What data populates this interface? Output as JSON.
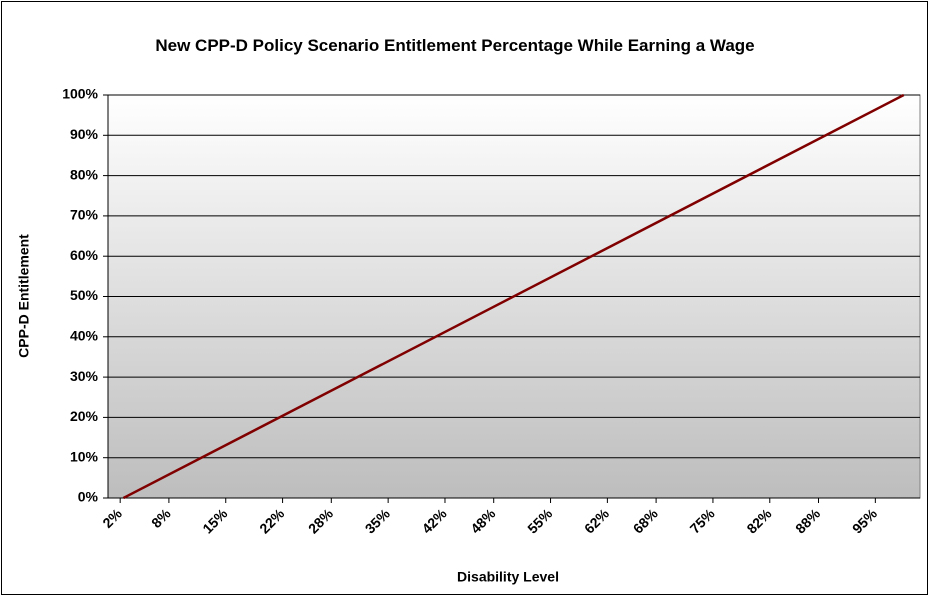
{
  "chart_data": {
    "type": "line",
    "title": "New CPP-D Policy Scenario Entitlement Percentage While Earning a Wage",
    "x_label": "Disability Level",
    "y_label": "CPP-D Entitlement",
    "x": [
      2.4,
      98.5
    ],
    "series": [
      {
        "name": "CPP-D Entitlement",
        "color": "#800000",
        "values": [
          0,
          100
        ]
      }
    ],
    "xlim": [
      0.5,
      100.5
    ],
    "xticks": [
      {
        "value": 2,
        "label": "2%"
      },
      {
        "value": 8,
        "label": "8%"
      },
      {
        "value": 15,
        "label": "15%"
      },
      {
        "value": 22,
        "label": "22%"
      },
      {
        "value": 28,
        "label": "28%"
      },
      {
        "value": 35,
        "label": "35%"
      },
      {
        "value": 42,
        "label": "42%"
      },
      {
        "value": 48,
        "label": "48%"
      },
      {
        "value": 55,
        "label": "55%"
      },
      {
        "value": 62,
        "label": "62%"
      },
      {
        "value": 68,
        "label": "68%"
      },
      {
        "value": 75,
        "label": "75%"
      },
      {
        "value": 82,
        "label": "82%"
      },
      {
        "value": 88,
        "label": "88%"
      },
      {
        "value": 95,
        "label": "95%"
      }
    ],
    "ylim": [
      0,
      100
    ],
    "yticks": [
      {
        "value": 0,
        "label": "0%"
      },
      {
        "value": 10,
        "label": "10%"
      },
      {
        "value": 20,
        "label": "20%"
      },
      {
        "value": 30,
        "label": "30%"
      },
      {
        "value": 40,
        "label": "40%"
      },
      {
        "value": 50,
        "label": "50%"
      },
      {
        "value": 60,
        "label": "60%"
      },
      {
        "value": 70,
        "label": "70%"
      },
      {
        "value": 80,
        "label": "80%"
      },
      {
        "value": 90,
        "label": "90%"
      },
      {
        "value": 100,
        "label": "100%"
      }
    ],
    "grid": true
  }
}
